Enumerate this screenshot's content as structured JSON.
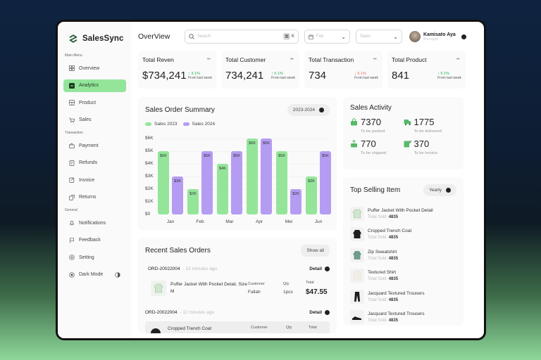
{
  "brand": {
    "name": "SalesSync"
  },
  "sidebar": {
    "sections": [
      {
        "label": "Main Menu",
        "items": [
          {
            "label": "Overview",
            "icon": "grid-icon",
            "active": false
          },
          {
            "label": "Analytics",
            "icon": "analytics-icon",
            "active": true
          },
          {
            "label": "Product",
            "icon": "box-icon",
            "active": false
          },
          {
            "label": "Sales",
            "icon": "cart-icon",
            "active": false
          }
        ]
      },
      {
        "label": "Transaction",
        "items": [
          {
            "label": "Payment",
            "icon": "wallet-icon"
          },
          {
            "label": "Refunds",
            "icon": "receipt-icon"
          },
          {
            "label": "Invoice",
            "icon": "invoice-icon"
          },
          {
            "label": "Returns",
            "icon": "return-icon"
          }
        ]
      },
      {
        "label": "General",
        "items": [
          {
            "label": "Notifications",
            "icon": "bell-icon"
          },
          {
            "label": "Feedback",
            "icon": "flag-icon"
          },
          {
            "label": "Setting",
            "icon": "gear-icon"
          },
          {
            "label": "Dark Mode",
            "icon": "moon-icon"
          }
        ]
      }
    ]
  },
  "header": {
    "title": "OverView",
    "search": {
      "placeholder": "Search",
      "shortcut_key": "K"
    },
    "month_select": {
      "value": "Feb"
    },
    "type_select": {
      "value": "Sales"
    },
    "user": {
      "name": "Kamisato Aya",
      "role": "Manager"
    }
  },
  "stats": [
    {
      "title": "Total Reven",
      "value": "$734,241",
      "change": "↑ 3.1%",
      "direction": "up",
      "from": "From last week"
    },
    {
      "title": "Total Customer",
      "value": "734,241",
      "change": "↑ 5.1%",
      "direction": "up",
      "from": "From last week"
    },
    {
      "title": "Total Transaction",
      "value": "734",
      "change": "↓ 5.1%",
      "direction": "down",
      "from": "From last week"
    },
    {
      "title": "Total Product",
      "value": "841",
      "change": "↑ 5.1%",
      "direction": "up",
      "from": "From last week"
    }
  ],
  "sales_summary": {
    "title": "Sales Order Summary",
    "period": "2023-2024",
    "legend": [
      "Sales 2023",
      "Sales 2024"
    ]
  },
  "chart_data": {
    "type": "bar",
    "title": "Sales Order Summary",
    "categories": [
      "Jan",
      "Feb",
      "Mar",
      "Apr",
      "Mei",
      "Jun"
    ],
    "series": [
      {
        "name": "Sales 2023",
        "color": "#94e59a",
        "values": [
          5000,
          2000,
          4000,
          6000,
          5000,
          3000
        ],
        "labels": [
          "$5K",
          "$2K",
          "$4K",
          "$6K",
          "$5K",
          "$3K"
        ]
      },
      {
        "name": "Sales 2024",
        "color": "#b49cf2",
        "values": [
          3000,
          5000,
          5000,
          6000,
          2000,
          5000
        ],
        "labels": [
          "$3K",
          "$5K",
          "$5K",
          "$6K",
          "$2K",
          "$5K"
        ]
      }
    ],
    "yticks": [
      "$0",
      "$1K",
      "$2K",
      "$3K",
      "$4K",
      "$5K",
      "$6K"
    ],
    "ylim": [
      0,
      6000
    ],
    "xlabel": "",
    "ylabel": "",
    "legend_position": "top-left",
    "grid": true
  },
  "recent_orders": {
    "title": "Recent Sales Orders",
    "show_all_label": "Show all",
    "detail_label": "Detail",
    "orders": [
      {
        "id": "ORD-20022004",
        "time": "12 minutes ago",
        "product": "Puffer Jacket With Pocket Detail, Size M",
        "customer_label": "Customer",
        "customer": "Fallah",
        "qty_label": "Qty",
        "qty": "1pcs",
        "total_label": "Total",
        "total": "$47.55"
      },
      {
        "id": "ORD-20022004",
        "time": "12 minutes ago",
        "product": "Cropped Trench Coat",
        "customer_label": "Customer",
        "qty_label": "Qty",
        "total_label": "Total"
      }
    ]
  },
  "sales_activity": {
    "title": "Sales Activity",
    "items": [
      {
        "value": "7370",
        "label": "To be packed",
        "icon": "bag-icon"
      },
      {
        "value": "1775",
        "label": "To be delivered",
        "icon": "truck-icon"
      },
      {
        "value": "770",
        "label": "To be shipped",
        "icon": "package-icon"
      },
      {
        "value": "370",
        "label": "To be invoice",
        "icon": "invoice-icon"
      }
    ]
  },
  "top_selling": {
    "title": "Top Selling Item",
    "period": "Yearly",
    "sold_label": "Total Sold:",
    "items": [
      {
        "name": "Puffer Jacket With Pocket Detail",
        "sold": "4835",
        "thumb": "jacket-light"
      },
      {
        "name": "Cropped Trench Coat",
        "sold": "4835",
        "thumb": "coat-dark"
      },
      {
        "name": "Zip Sweatshirt",
        "sold": "4835",
        "thumb": "sweatshirt"
      },
      {
        "name": "Textured Shirt",
        "sold": "4835",
        "thumb": "shirt"
      },
      {
        "name": "Jacquard Textured Trousers",
        "sold": "4835",
        "thumb": "trousers"
      },
      {
        "name": "Jacquard Textured Trousers",
        "sold": "4835",
        "thumb": "shoes"
      }
    ]
  },
  "colors": {
    "accent_green": "#94e59a",
    "accent_purple": "#b49cf2",
    "up": "#22b24c",
    "down": "#e8665a"
  }
}
